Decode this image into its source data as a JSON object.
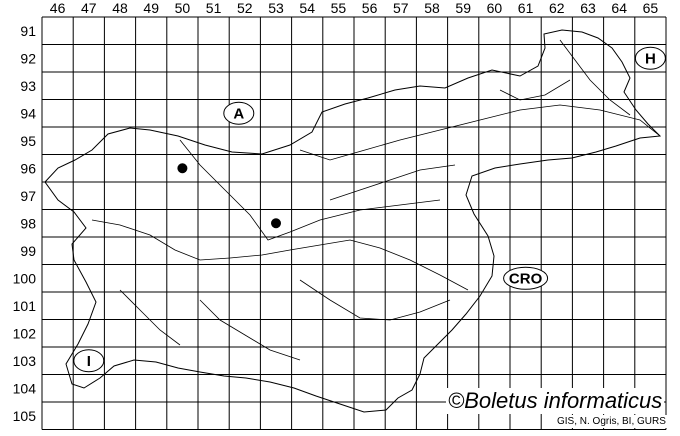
{
  "map": {
    "columns": [
      "46",
      "47",
      "48",
      "49",
      "50",
      "51",
      "52",
      "53",
      "54",
      "55",
      "56",
      "57",
      "58",
      "59",
      "60",
      "61",
      "62",
      "63",
      "64",
      "65"
    ],
    "rows": [
      "91",
      "92",
      "93",
      "94",
      "95",
      "96",
      "97",
      "98",
      "99",
      "100",
      "101",
      "102",
      "103",
      "104",
      "105"
    ],
    "regions": [
      {
        "label": "A",
        "col": "52",
        "row": "94"
      },
      {
        "label": "H",
        "col": "65",
        "row": "92"
      },
      {
        "label": "CRO",
        "col": "61",
        "row": "100"
      },
      {
        "label": "I",
        "col": "47",
        "row": "103"
      }
    ],
    "records": [
      {
        "col": "50",
        "row": "96"
      },
      {
        "col": "53",
        "row": "98"
      }
    ],
    "colors": {
      "grid": "#000000",
      "record": "#000000"
    }
  },
  "credit": "©Boletus informaticus",
  "source": "GIS, N. Ogris, BI, GURS"
}
